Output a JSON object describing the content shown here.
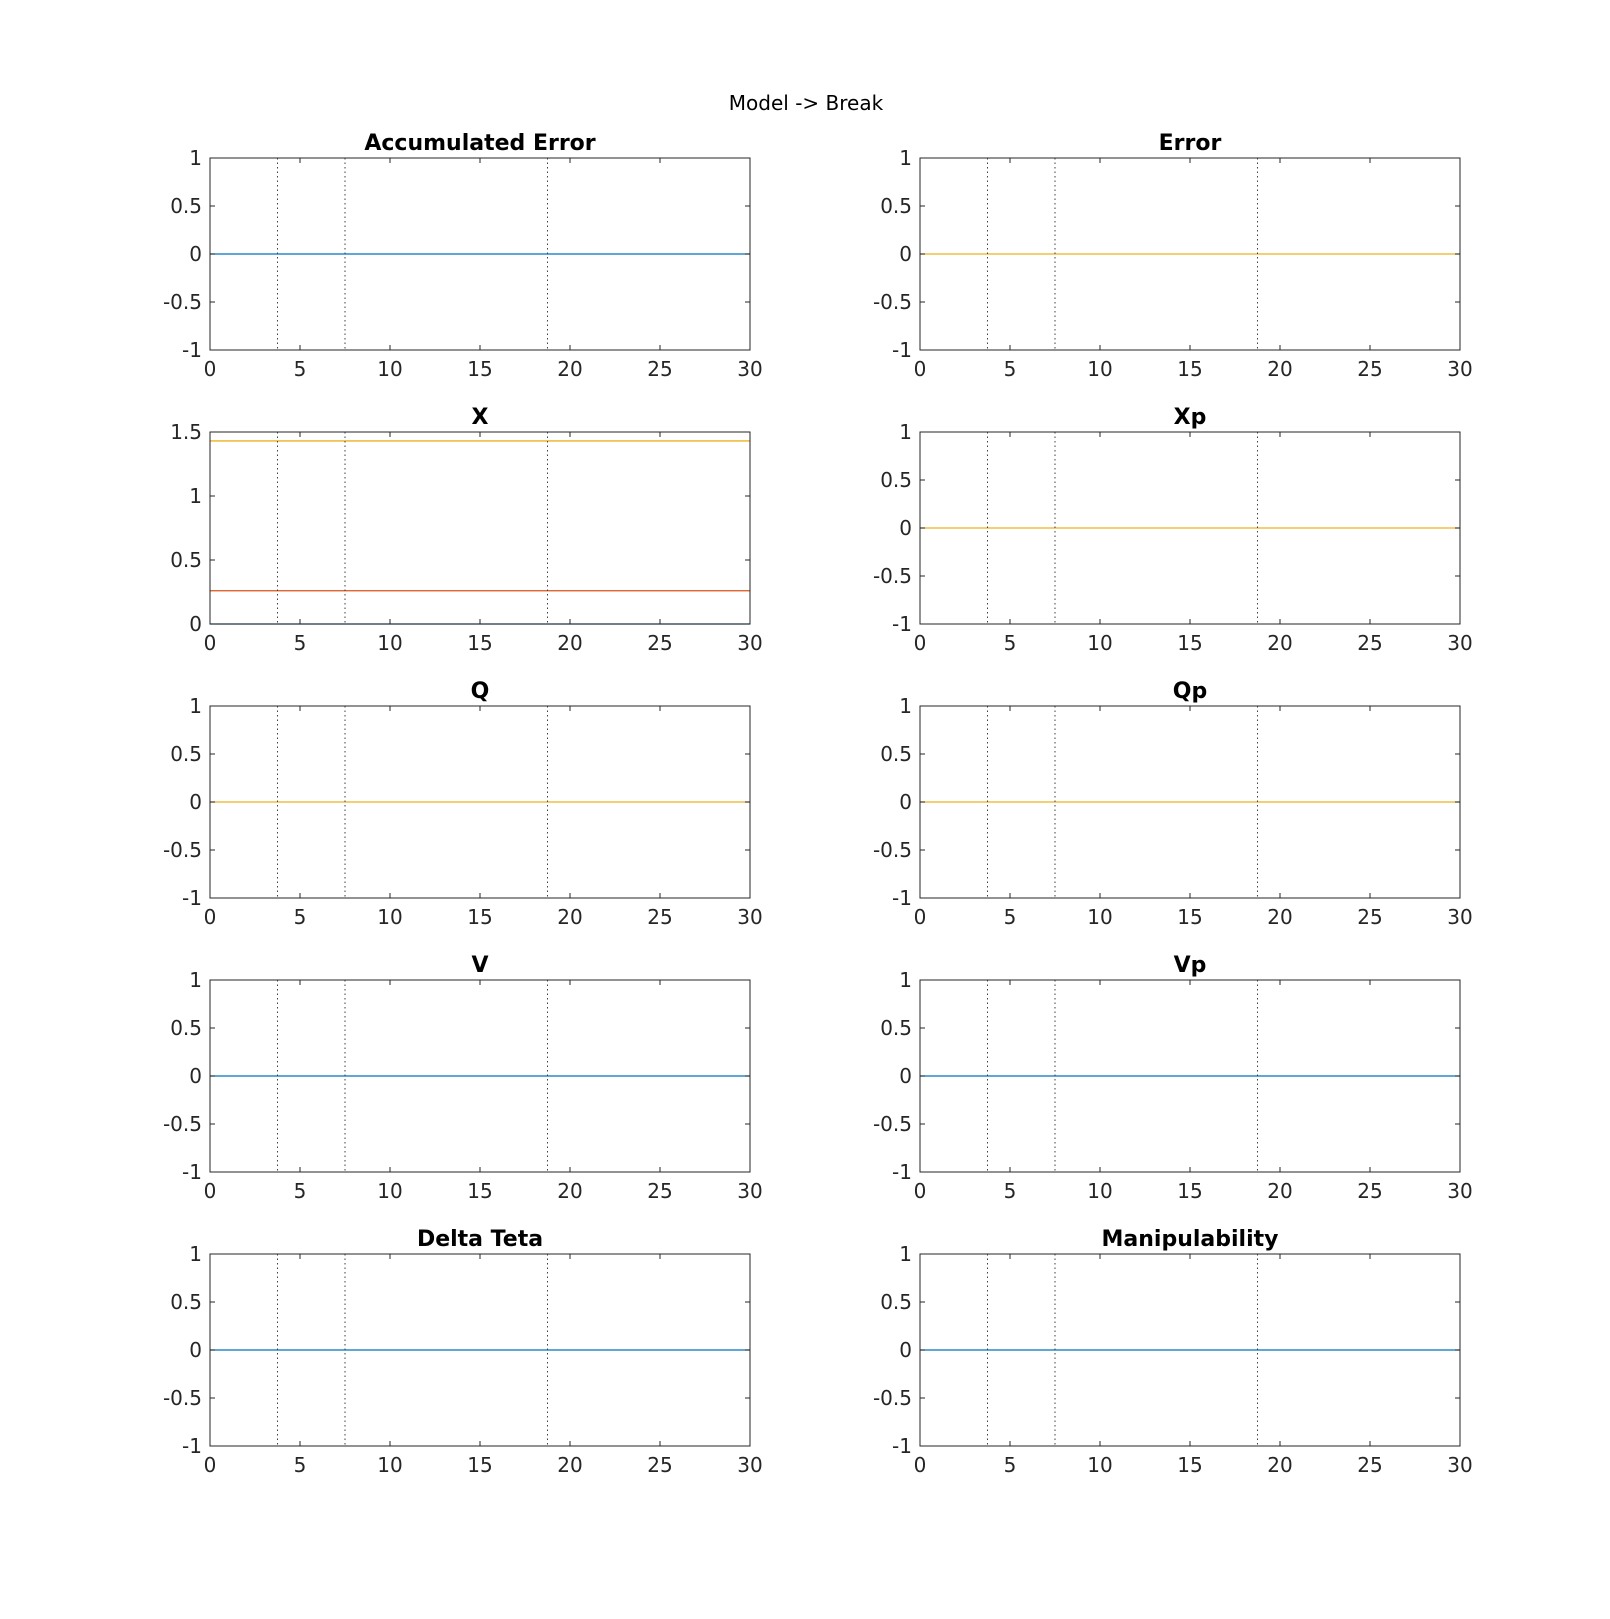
{
  "figure_title": "Model -> Break",
  "colors": {
    "blue": "#0072BD",
    "orange": "#D95319",
    "yellow": "#EDB120",
    "axis": "#262626",
    "marker": "#404040"
  },
  "chart_data": [
    {
      "type": "line",
      "title": "Accumulated Error",
      "xlim": [
        0,
        30
      ],
      "ylim": [
        -1,
        1
      ],
      "xticks": [
        "0",
        "5",
        "10",
        "15",
        "20",
        "25",
        "30"
      ],
      "yticks": [
        "-1",
        "-0.5",
        "0",
        "0.5",
        "1"
      ],
      "vlines": [
        3.75,
        7.5,
        18.75
      ],
      "series": [
        {
          "color": "#0072BD",
          "x": [
            0,
            30
          ],
          "y": [
            0,
            0
          ]
        }
      ]
    },
    {
      "type": "line",
      "title": "Error",
      "xlim": [
        0,
        30
      ],
      "ylim": [
        -1,
        1
      ],
      "xticks": [
        "0",
        "5",
        "10",
        "15",
        "20",
        "25",
        "30"
      ],
      "yticks": [
        "-1",
        "-0.5",
        "0",
        "0.5",
        "1"
      ],
      "vlines": [
        3.75,
        7.5,
        18.75
      ],
      "series": [
        {
          "color": "#EDB120",
          "x": [
            0,
            30
          ],
          "y": [
            0,
            0
          ]
        }
      ]
    },
    {
      "type": "line",
      "title": "X",
      "xlim": [
        0,
        30
      ],
      "ylim": [
        0,
        1.5
      ],
      "xticks": [
        "0",
        "5",
        "10",
        "15",
        "20",
        "25",
        "30"
      ],
      "yticks": [
        "0",
        "0.5",
        "1",
        "1.5"
      ],
      "vlines": [
        3.75,
        7.5,
        18.75
      ],
      "series": [
        {
          "color": "#0072BD",
          "x": [
            0,
            30
          ],
          "y": [
            0,
            0
          ]
        },
        {
          "color": "#D95319",
          "x": [
            0,
            30
          ],
          "y": [
            0.26,
            0.26
          ]
        },
        {
          "color": "#EDB120",
          "x": [
            0,
            30
          ],
          "y": [
            1.43,
            1.43
          ]
        }
      ]
    },
    {
      "type": "line",
      "title": "Xp",
      "xlim": [
        0,
        30
      ],
      "ylim": [
        -1,
        1
      ],
      "xticks": [
        "0",
        "5",
        "10",
        "15",
        "20",
        "25",
        "30"
      ],
      "yticks": [
        "-1",
        "-0.5",
        "0",
        "0.5",
        "1"
      ],
      "vlines": [
        3.75,
        7.5,
        18.75
      ],
      "series": [
        {
          "color": "#EDB120",
          "x": [
            0,
            30
          ],
          "y": [
            0,
            0
          ]
        }
      ]
    },
    {
      "type": "line",
      "title": "Q",
      "xlim": [
        0,
        30
      ],
      "ylim": [
        -1,
        1
      ],
      "xticks": [
        "0",
        "5",
        "10",
        "15",
        "20",
        "25",
        "30"
      ],
      "yticks": [
        "-1",
        "-0.5",
        "0",
        "0.5",
        "1"
      ],
      "vlines": [
        3.75,
        7.5,
        18.75
      ],
      "series": [
        {
          "color": "#EDB120",
          "x": [
            0,
            30
          ],
          "y": [
            0,
            0
          ]
        }
      ]
    },
    {
      "type": "line",
      "title": "Qp",
      "xlim": [
        0,
        30
      ],
      "ylim": [
        -1,
        1
      ],
      "xticks": [
        "0",
        "5",
        "10",
        "15",
        "20",
        "25",
        "30"
      ],
      "yticks": [
        "-1",
        "-0.5",
        "0",
        "0.5",
        "1"
      ],
      "vlines": [
        3.75,
        7.5,
        18.75
      ],
      "series": [
        {
          "color": "#EDB120",
          "x": [
            0,
            30
          ],
          "y": [
            0,
            0
          ]
        }
      ]
    },
    {
      "type": "line",
      "title": "V",
      "xlim": [
        0,
        30
      ],
      "ylim": [
        -1,
        1
      ],
      "xticks": [
        "0",
        "5",
        "10",
        "15",
        "20",
        "25",
        "30"
      ],
      "yticks": [
        "-1",
        "-0.5",
        "0",
        "0.5",
        "1"
      ],
      "vlines": [
        3.75,
        7.5,
        18.75
      ],
      "series": [
        {
          "color": "#0072BD",
          "x": [
            0,
            30
          ],
          "y": [
            0,
            0
          ]
        }
      ]
    },
    {
      "type": "line",
      "title": "Vp",
      "xlim": [
        0,
        30
      ],
      "ylim": [
        -1,
        1
      ],
      "xticks": [
        "0",
        "5",
        "10",
        "15",
        "20",
        "25",
        "30"
      ],
      "yticks": [
        "-1",
        "-0.5",
        "0",
        "0.5",
        "1"
      ],
      "vlines": [
        3.75,
        7.5,
        18.75
      ],
      "series": [
        {
          "color": "#0072BD",
          "x": [
            0,
            30
          ],
          "y": [
            0,
            0
          ]
        }
      ]
    },
    {
      "type": "line",
      "title": "Delta Teta",
      "xlim": [
        0,
        30
      ],
      "ylim": [
        -1,
        1
      ],
      "xticks": [
        "0",
        "5",
        "10",
        "15",
        "20",
        "25",
        "30"
      ],
      "yticks": [
        "-1",
        "-0.5",
        "0",
        "0.5",
        "1"
      ],
      "vlines": [
        3.75,
        7.5,
        18.75
      ],
      "series": [
        {
          "color": "#0072BD",
          "x": [
            0,
            30
          ],
          "y": [
            0,
            0
          ]
        }
      ]
    },
    {
      "type": "line",
      "title": "Manipulability",
      "xlim": [
        0,
        30
      ],
      "ylim": [
        -1,
        1
      ],
      "xticks": [
        "0",
        "5",
        "10",
        "15",
        "20",
        "25",
        "30"
      ],
      "yticks": [
        "-1",
        "-0.5",
        "0",
        "0.5",
        "1"
      ],
      "vlines": [
        3.75,
        7.5,
        18.75
      ],
      "series": [
        {
          "color": "#0072BD",
          "x": [
            0,
            30
          ],
          "y": [
            0,
            0
          ]
        }
      ]
    }
  ]
}
